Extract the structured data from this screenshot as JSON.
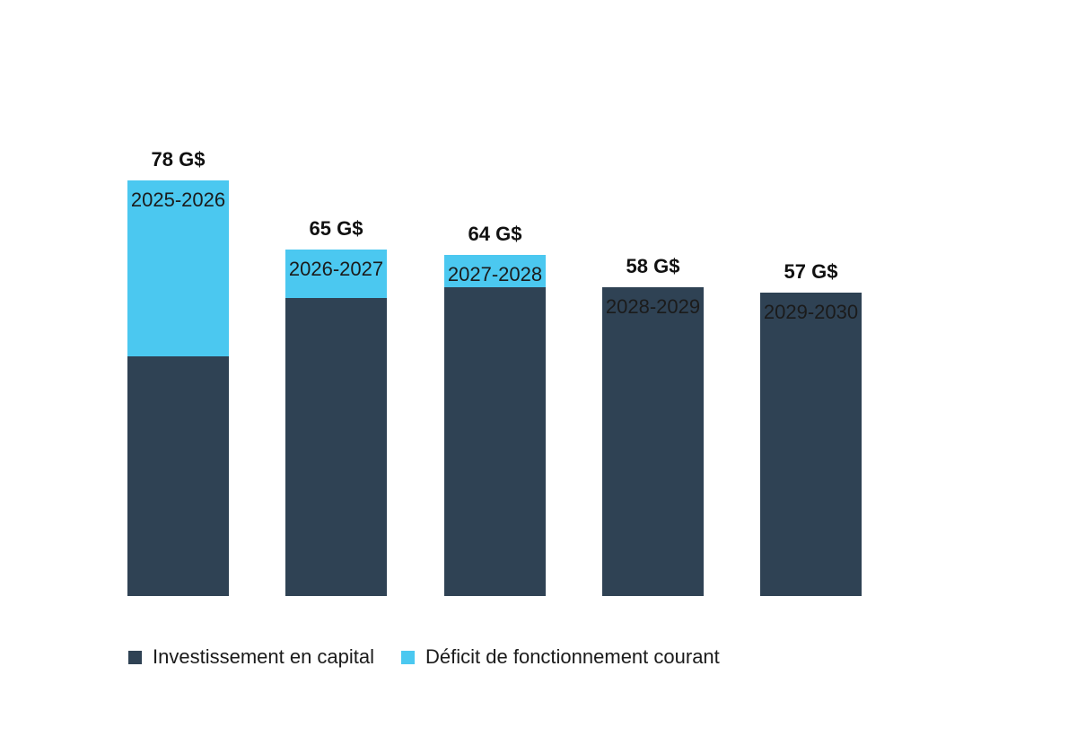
{
  "chart_data": {
    "type": "bar",
    "stacked": true,
    "title": "",
    "xlabel": "",
    "ylabel": "",
    "unit": "G$",
    "grid": false,
    "legend_position": "bottom",
    "categories": [
      "2025-2026",
      "2026-2027",
      "2027-2028",
      "2028-2029",
      "2029-2030"
    ],
    "series": [
      {
        "name": "Investissement en capital",
        "color": "#2F4254",
        "values": [
          45,
          56,
          58,
          58,
          57
        ]
      },
      {
        "name": "Déficit de fonctionnement courant",
        "color": "#4BC8F0",
        "values": [
          33,
          9,
          6,
          0,
          0
        ]
      }
    ],
    "totals": [
      78,
      65,
      64,
      58,
      57
    ],
    "total_labels": [
      "78 G$",
      "65 G$",
      "64 G$",
      "58 G$",
      "57 G$"
    ],
    "ylim": [
      0,
      85
    ]
  },
  "colors": {
    "background": "#FFFFFF",
    "value_label": "#111111",
    "axis_label": "#1B1B1B"
  }
}
